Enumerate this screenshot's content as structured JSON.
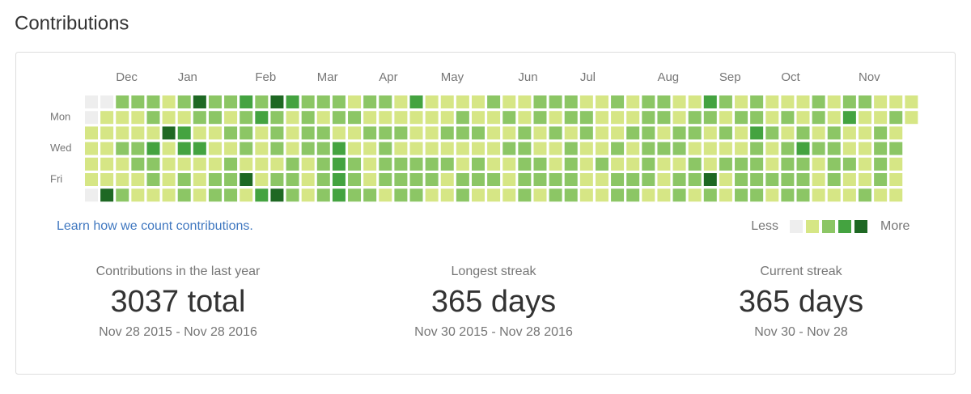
{
  "header": {
    "title": "Contributions"
  },
  "heatmap": {
    "months": [
      "Dec",
      "Jan",
      "Feb",
      "Mar",
      "Apr",
      "May",
      "Jun",
      "Jul",
      "Aug",
      "Sep",
      "Oct",
      "Nov"
    ],
    "days": [
      "Mon",
      "Wed",
      "Fri"
    ],
    "colors": [
      "#eeeeee",
      "#d6e685",
      "#8cc665",
      "#44a340",
      "#1e6823"
    ],
    "weeks": [
      [
        0,
        0,
        1,
        1,
        1,
        1,
        0
      ],
      [
        0,
        1,
        1,
        1,
        1,
        1,
        4
      ],
      [
        2,
        1,
        1,
        2,
        1,
        1,
        2
      ],
      [
        2,
        1,
        1,
        2,
        2,
        1,
        1
      ],
      [
        2,
        2,
        1,
        3,
        2,
        2,
        1
      ],
      [
        1,
        1,
        4,
        1,
        1,
        1,
        1
      ],
      [
        2,
        1,
        3,
        3,
        1,
        2,
        2
      ],
      [
        4,
        2,
        1,
        3,
        1,
        1,
        1
      ],
      [
        2,
        2,
        1,
        1,
        1,
        2,
        2
      ],
      [
        2,
        1,
        2,
        1,
        2,
        2,
        2
      ],
      [
        3,
        2,
        2,
        2,
        1,
        4,
        1
      ],
      [
        2,
        3,
        1,
        1,
        1,
        1,
        3
      ],
      [
        4,
        2,
        2,
        2,
        1,
        2,
        4
      ],
      [
        3,
        1,
        1,
        1,
        2,
        2,
        2
      ],
      [
        2,
        2,
        2,
        2,
        1,
        1,
        1
      ],
      [
        2,
        1,
        2,
        2,
        2,
        2,
        2
      ],
      [
        2,
        2,
        1,
        3,
        3,
        3,
        3
      ],
      [
        1,
        2,
        1,
        1,
        2,
        2,
        2
      ],
      [
        2,
        1,
        2,
        1,
        1,
        1,
        2
      ],
      [
        2,
        1,
        2,
        2,
        2,
        2,
        1
      ],
      [
        1,
        1,
        2,
        1,
        2,
        2,
        2
      ],
      [
        3,
        1,
        1,
        1,
        2,
        2,
        2
      ],
      [
        1,
        1,
        1,
        1,
        2,
        2,
        1
      ],
      [
        1,
        1,
        2,
        1,
        2,
        1,
        1
      ],
      [
        1,
        2,
        2,
        1,
        1,
        2,
        2
      ],
      [
        1,
        1,
        2,
        1,
        2,
        2,
        1
      ],
      [
        2,
        1,
        1,
        1,
        1,
        2,
        1
      ],
      [
        1,
        2,
        1,
        2,
        1,
        1,
        1
      ],
      [
        1,
        1,
        2,
        2,
        2,
        2,
        2
      ],
      [
        2,
        2,
        1,
        1,
        2,
        2,
        1
      ],
      [
        2,
        1,
        2,
        1,
        1,
        2,
        2
      ],
      [
        2,
        2,
        1,
        2,
        2,
        2,
        2
      ],
      [
        1,
        2,
        2,
        1,
        1,
        1,
        1
      ],
      [
        1,
        1,
        1,
        1,
        2,
        1,
        1
      ],
      [
        2,
        1,
        1,
        2,
        1,
        2,
        2
      ],
      [
        1,
        1,
        2,
        1,
        1,
        2,
        2
      ],
      [
        2,
        2,
        2,
        2,
        2,
        2,
        1
      ],
      [
        2,
        2,
        1,
        2,
        1,
        1,
        1
      ],
      [
        1,
        1,
        2,
        2,
        1,
        2,
        2
      ],
      [
        1,
        2,
        2,
        1,
        2,
        2,
        1
      ],
      [
        3,
        2,
        1,
        1,
        1,
        4,
        2
      ],
      [
        2,
        1,
        2,
        1,
        2,
        1,
        1
      ],
      [
        1,
        2,
        1,
        1,
        2,
        2,
        2
      ],
      [
        2,
        2,
        3,
        2,
        2,
        2,
        2
      ],
      [
        1,
        1,
        2,
        1,
        1,
        2,
        1
      ],
      [
        1,
        2,
        1,
        2,
        2,
        2,
        2
      ],
      [
        1,
        1,
        2,
        3,
        2,
        2,
        2
      ],
      [
        2,
        2,
        1,
        2,
        1,
        1,
        1
      ],
      [
        1,
        1,
        2,
        2,
        2,
        2,
        1
      ],
      [
        2,
        3,
        1,
        1,
        2,
        1,
        1
      ],
      [
        2,
        1,
        1,
        1,
        1,
        1,
        2
      ],
      [
        1,
        1,
        2,
        2,
        2,
        2,
        1
      ],
      [
        1,
        2,
        1,
        2,
        1,
        1,
        1
      ],
      [
        1,
        1
      ]
    ],
    "link": "Learn how we count contributions.",
    "legend_less": "Less",
    "legend_more": "More"
  },
  "stats": [
    {
      "label": "Contributions in the last year",
      "value": "3037 total",
      "range": "Nov 28 2015 - Nov 28 2016"
    },
    {
      "label": "Longest streak",
      "value": "365 days",
      "range": "Nov 30 2015 - Nov 28 2016"
    },
    {
      "label": "Current streak",
      "value": "365 days",
      "range": "Nov 30 - Nov 28"
    }
  ]
}
